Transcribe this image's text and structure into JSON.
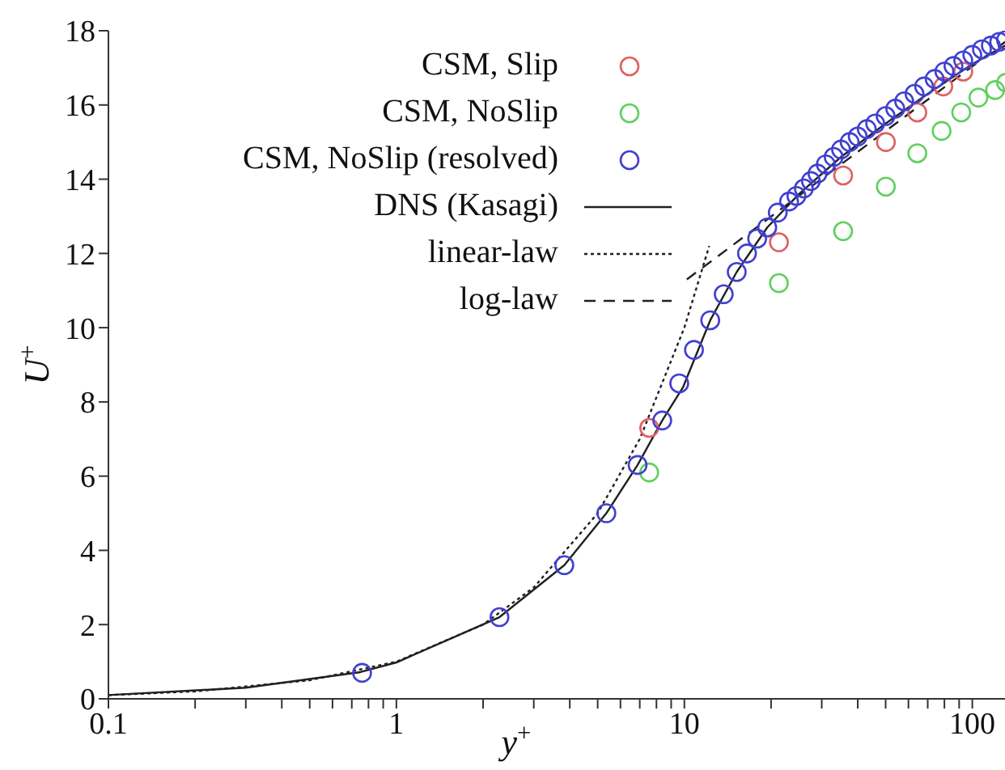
{
  "chart_data": {
    "type": "scatter",
    "xlabel": "y$^{+}$",
    "ylabel": "U$^{+}$",
    "log": "x",
    "legend": "top left",
    "xlim": [
      0.1,
      135
    ],
    "xticks": [
      0.1,
      {
        "value": 0.2,
        "label": null
      },
      {
        "value": 0.3,
        "label": null
      },
      {
        "value": 0.4,
        "label": null
      },
      {
        "value": 0.5,
        "label": null
      },
      {
        "value": 0.6,
        "label": null
      },
      {
        "value": 0.7,
        "label": null
      },
      {
        "value": 0.8,
        "label": null
      },
      {
        "value": 0.9,
        "label": null
      },
      1,
      {
        "value": 2,
        "label": null
      },
      {
        "value": 3,
        "label": null
      },
      {
        "value": 4,
        "label": null
      },
      {
        "value": 5,
        "label": null
      },
      {
        "value": 6,
        "label": null
      },
      {
        "value": 7,
        "label": null
      },
      {
        "value": 8,
        "label": null
      },
      {
        "value": 9,
        "label": null
      },
      10,
      {
        "value": 20,
        "label": null
      },
      {
        "value": 30,
        "label": null
      },
      {
        "value": 40,
        "label": null
      },
      {
        "value": 50,
        "label": null
      },
      {
        "value": 60,
        "label": null
      },
      {
        "value": 70,
        "label": null
      },
      {
        "value": 80,
        "label": null
      },
      {
        "value": 90,
        "label": null
      },
      100
    ],
    "ylim": [
      0,
      18
    ],
    "yticks": [
      0,
      2,
      4,
      6,
      8,
      10,
      12,
      14,
      16,
      18
    ],
    "series": [
      {
        "name": "CSM, Slip",
        "marker": "circle",
        "color": "#e06060",
        "x": [
          7.55,
          21.3,
          35.6,
          50.1,
          64.4,
          79.3,
          93
        ],
        "values": [
          7.3,
          12.3,
          14.1,
          15.0,
          15.8,
          16.5,
          16.9
        ]
      },
      {
        "name": "CSM, NoSlip",
        "marker": "circle",
        "color": "#60d060",
        "x": [
          7.55,
          21.3,
          35.6,
          50.1,
          64.4,
          78.2,
          91.5,
          105,
          120,
          131
        ],
        "values": [
          6.1,
          11.2,
          12.6,
          13.8,
          14.7,
          15.3,
          15.8,
          16.2,
          16.4,
          16.6
        ]
      },
      {
        "name": "CSM, NoSlip (resolved)",
        "marker": "circle",
        "color": "#4040d0",
        "x": [
          0.76,
          2.28,
          3.83,
          5.36,
          6.88,
          8.38,
          9.6,
          10.8,
          12.3,
          13.7,
          15.2,
          16.5,
          17.9,
          19.4,
          21.1,
          23.1,
          24.5,
          26,
          27.5,
          29,
          31,
          33,
          35,
          37.5,
          40,
          43,
          46,
          50,
          54,
          58,
          63,
          68,
          74,
          80,
          86,
          93,
          100,
          108,
          116,
          124,
          131
        ],
        "values": [
          0.7,
          2.2,
          3.6,
          5.0,
          6.3,
          7.5,
          8.5,
          9.4,
          10.2,
          10.9,
          11.5,
          12.0,
          12.4,
          12.7,
          13.1,
          13.4,
          13.55,
          13.75,
          13.95,
          14.15,
          14.4,
          14.6,
          14.8,
          15.0,
          15.15,
          15.35,
          15.5,
          15.7,
          15.9,
          16.1,
          16.3,
          16.5,
          16.7,
          16.9,
          17.05,
          17.2,
          17.35,
          17.5,
          17.6,
          17.7,
          17.75
        ]
      },
      {
        "name": "DNS (Kasagi)",
        "type": "line",
        "marker": "none",
        "line_style": "solid",
        "color": "#202020",
        "x": [
          0.1,
          0.3,
          0.75,
          1,
          2.28,
          3.83,
          5.36,
          6.88,
          8.38,
          9.9,
          12.3,
          15.2,
          19.4,
          25,
          35,
          50,
          70,
          100,
          130
        ],
        "values": [
          0.1,
          0.3,
          0.72,
          0.98,
          2.2,
          3.6,
          5.0,
          6.3,
          7.5,
          8.4,
          10.2,
          11.5,
          12.7,
          13.6,
          14.6,
          15.5,
          16.3,
          17.1,
          17.6
        ]
      },
      {
        "name": "linear-law",
        "type": "line",
        "marker": "none",
        "line_style": "dotted",
        "color": "#202020",
        "x": [
          0.1,
          0.2,
          0.5,
          1,
          2,
          3,
          5,
          7,
          10,
          12.2
        ],
        "values": [
          0.1,
          0.2,
          0.5,
          1,
          2,
          3,
          5,
          7,
          10,
          12.2
        ]
      },
      {
        "name": "log-law",
        "type": "line",
        "marker": "none",
        "line_style": "dashed",
        "color": "#202020",
        "x": [
          10.2,
          130
        ],
        "values": [
          11.3,
          17.7
        ]
      }
    ]
  }
}
